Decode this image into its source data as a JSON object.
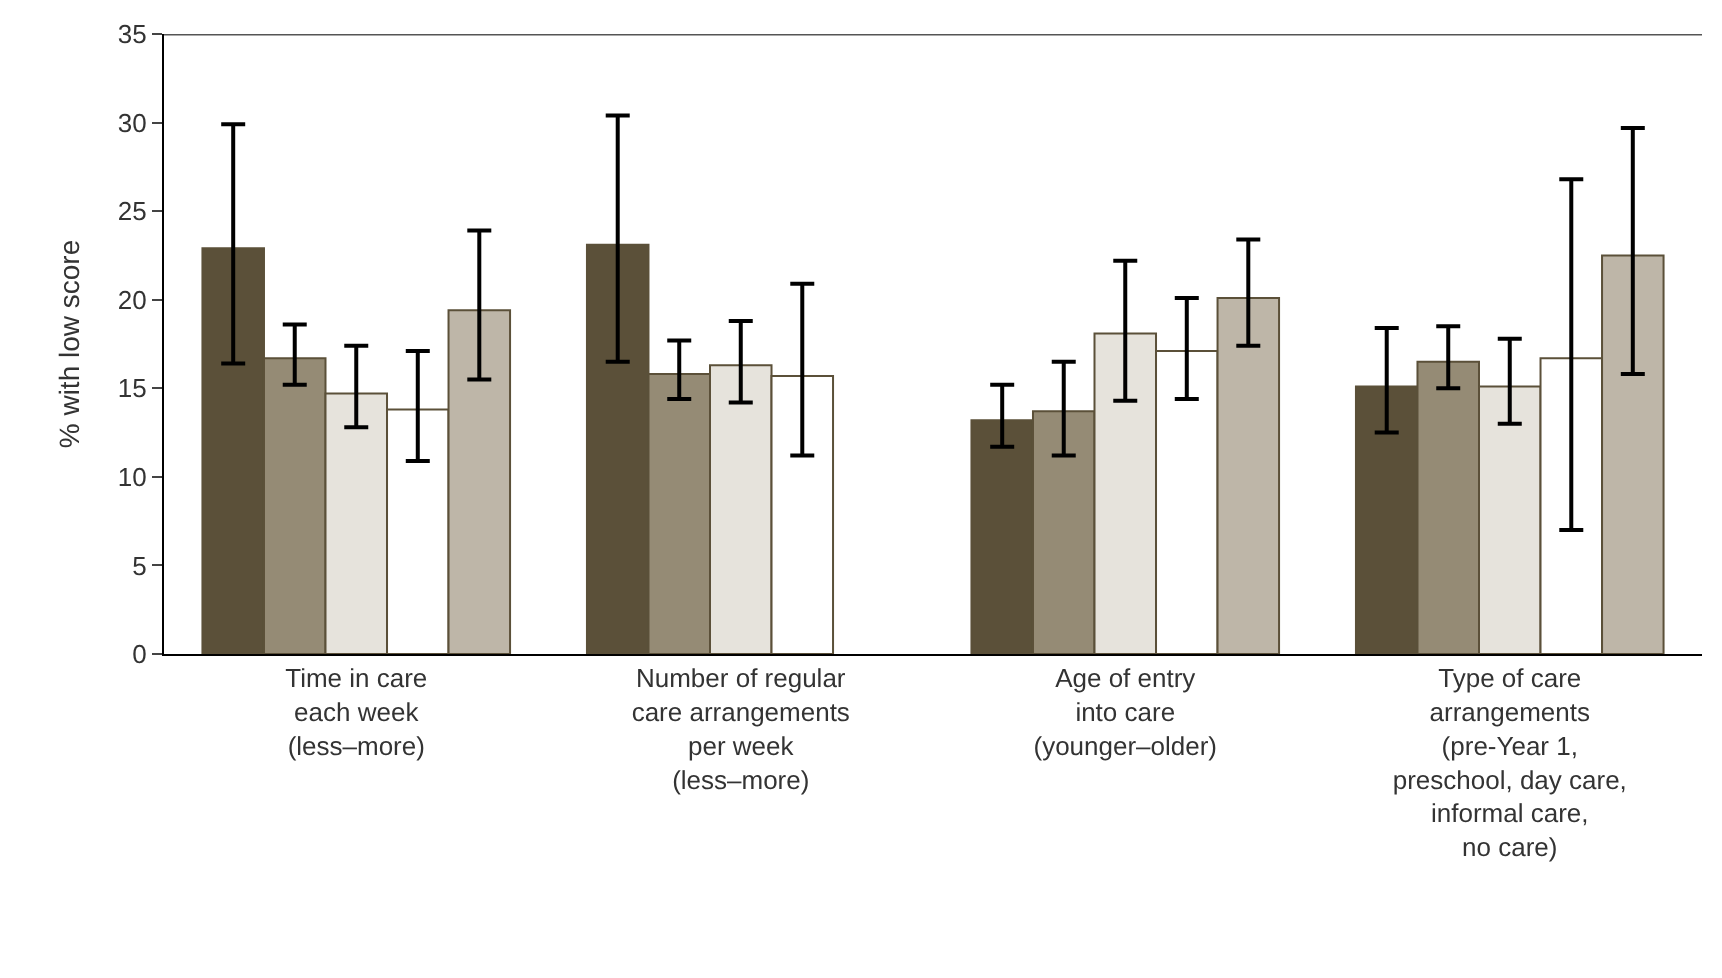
{
  "chart_data": {
    "type": "bar",
    "ylabel": "% with low score",
    "categories": [
      "Time in care\neach week\n(less–more)",
      "Number of regular\ncare arrangements\nper week\n(less–more)",
      "Age of entry\ninto care\n(younger–older)",
      "Type of care\narrangements\n(pre-Year 1,\npreschool, day care,\ninformal care,\nno care)"
    ],
    "series": [
      {
        "color": "#5b5039",
        "values": [
          22.9,
          23.1,
          13.2,
          15.1
        ],
        "errors": [
          [
            16.4,
            29.9
          ],
          [
            16.5,
            30.4
          ],
          [
            11.7,
            15.2
          ],
          [
            12.5,
            18.4
          ]
        ]
      },
      {
        "color": "#958b75",
        "values": [
          16.7,
          15.8,
          13.7,
          16.5
        ],
        "errors": [
          [
            15.2,
            18.6
          ],
          [
            14.4,
            17.7
          ],
          [
            11.2,
            16.5
          ],
          [
            15.0,
            18.5
          ]
        ]
      },
      {
        "color": "#e6e3dc",
        "values": [
          14.7,
          16.3,
          18.1,
          15.1
        ],
        "errors": [
          [
            12.8,
            17.4
          ],
          [
            14.2,
            18.8
          ],
          [
            14.3,
            22.2
          ],
          [
            13.0,
            17.8
          ]
        ]
      },
      {
        "color": "#ffffff",
        "values": [
          13.8,
          15.7,
          17.1,
          16.7
        ],
        "errors": [
          [
            10.9,
            17.1
          ],
          [
            11.2,
            20.9
          ],
          [
            14.4,
            20.1
          ],
          [
            7.0,
            26.8
          ]
        ]
      },
      {
        "color": "#beb6a8",
        "values": [
          19.4,
          null,
          20.1,
          22.5
        ],
        "errors": [
          [
            15.5,
            23.9
          ],
          null,
          [
            17.4,
            23.4
          ],
          [
            15.8,
            29.7
          ]
        ]
      }
    ],
    "ylim": [
      0,
      35
    ],
    "yticks": [
      0,
      5,
      10,
      15,
      20,
      25,
      30,
      35
    ]
  }
}
